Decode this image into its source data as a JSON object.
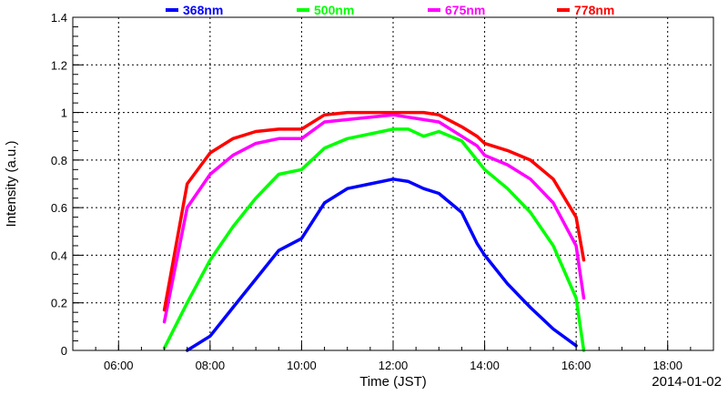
{
  "chart_data": {
    "type": "line",
    "title": "",
    "xlabel": "Time (JST)",
    "ylabel": "Intensity (a.u.)",
    "date_label": "2014-01-02",
    "xlim": [
      "05:00",
      "19:00"
    ],
    "ylim": [
      0,
      1.4
    ],
    "grid": true,
    "legend_position": "top",
    "x_ticks": [
      "06:00",
      "08:00",
      "10:00",
      "12:00",
      "14:00",
      "16:00",
      "18:00"
    ],
    "y_ticks": [
      "0",
      "0.2",
      "0.4",
      "0.6",
      "0.8",
      "1",
      "1.2",
      "1.4"
    ],
    "x": [
      "07:00",
      "07:30",
      "08:00",
      "08:30",
      "09:00",
      "09:30",
      "10:00",
      "10:30",
      "11:00",
      "11:30",
      "12:00",
      "12:20",
      "12:40",
      "13:00",
      "13:30",
      "13:50",
      "14:00",
      "14:30",
      "15:00",
      "15:30",
      "16:00",
      "16:10"
    ],
    "series": [
      {
        "name": "368nm",
        "color": "#0000ff",
        "values": [
          null,
          0.0,
          0.06,
          0.18,
          0.3,
          0.42,
          0.47,
          0.62,
          0.68,
          0.7,
          0.72,
          0.71,
          0.68,
          0.66,
          0.58,
          0.45,
          0.4,
          0.28,
          0.18,
          0.09,
          0.02,
          null
        ]
      },
      {
        "name": "500nm",
        "color": "#00ff00",
        "values": [
          0.01,
          0.2,
          0.38,
          0.52,
          0.64,
          0.74,
          0.76,
          0.85,
          0.89,
          0.91,
          0.93,
          0.93,
          0.9,
          0.92,
          0.88,
          0.8,
          0.76,
          0.68,
          0.58,
          0.44,
          0.22,
          0.0
        ]
      },
      {
        "name": "675nm",
        "color": "#ff00ff",
        "values": [
          0.12,
          0.6,
          0.74,
          0.82,
          0.87,
          0.89,
          0.89,
          0.96,
          0.97,
          0.98,
          0.99,
          0.98,
          0.97,
          0.96,
          0.9,
          0.86,
          0.82,
          0.78,
          0.72,
          0.62,
          0.44,
          0.22
        ]
      },
      {
        "name": "778nm",
        "color": "#ff0000",
        "values": [
          0.17,
          0.7,
          0.83,
          0.89,
          0.92,
          0.93,
          0.93,
          0.99,
          1.0,
          1.0,
          1.0,
          1.0,
          1.0,
          0.99,
          0.94,
          0.9,
          0.87,
          0.84,
          0.8,
          0.72,
          0.56,
          0.38
        ]
      }
    ]
  }
}
